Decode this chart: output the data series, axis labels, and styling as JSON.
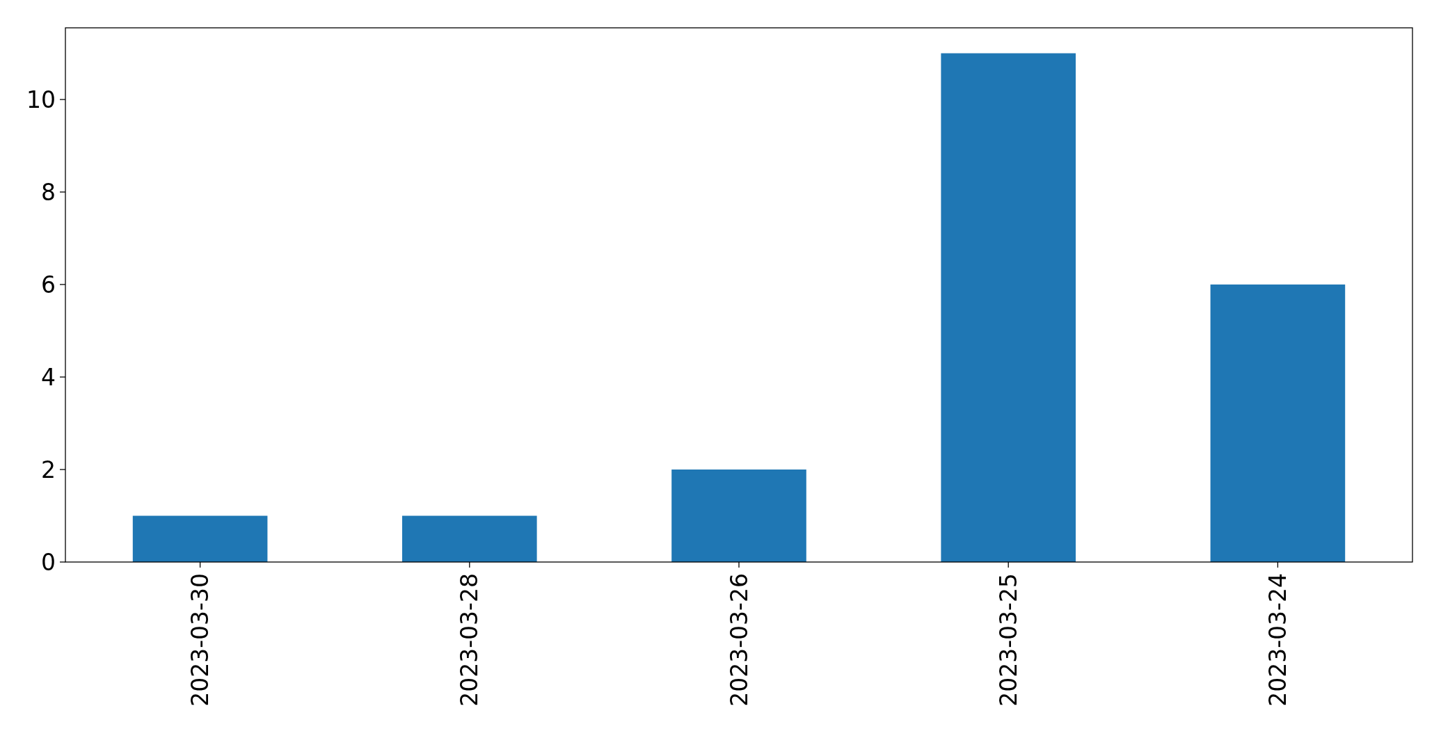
{
  "chart_data": {
    "type": "bar",
    "categories": [
      "2023-03-30",
      "2023-03-28",
      "2023-03-26",
      "2023-03-25",
      "2023-03-24"
    ],
    "values": [
      1,
      1,
      2,
      11,
      6
    ],
    "color": "#1f77b4",
    "ylim": [
      0,
      11.55
    ],
    "yticks": [
      0,
      2,
      4,
      6,
      8,
      10
    ],
    "grid": false
  }
}
